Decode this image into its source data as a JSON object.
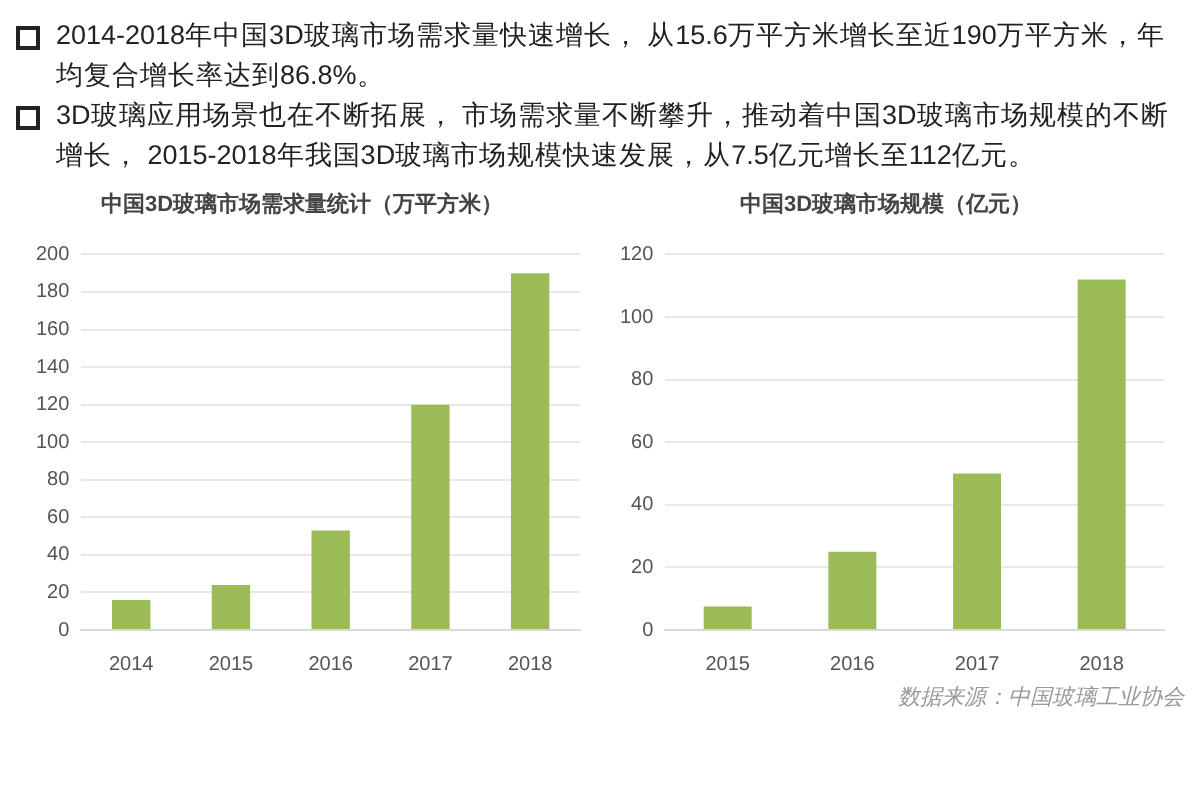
{
  "chart_data": [
    {
      "type": "other",
      "annotations": [
        "2014-2018年中国3D玻璃市场需求量快速增长， 从15.6万平方米增长至近190万平方米，年均复合增长率达到86.8%。",
        "3D玻璃应用场景也在不断拓展， 市场需求量不断攀升，推动着中国3D玻璃市场规模的不断增长， 2015-2018年我国3D玻璃市场规模快速发展，从7.5亿元增长至112亿元。"
      ]
    },
    {
      "type": "bar",
      "title": "中国3D玻璃市场需求量统计（万平方米）",
      "categories": [
        "2014",
        "2015",
        "2016",
        "2017",
        "2018"
      ],
      "values": [
        16,
        24,
        53,
        120,
        190
      ],
      "color": "#9bbb59",
      "ylim": [
        0,
        200
      ],
      "yticks": [
        0,
        20,
        40,
        60,
        80,
        100,
        120,
        140,
        160,
        180,
        200
      ],
      "grid": "y"
    },
    {
      "type": "bar",
      "title": "中国3D玻璃市场规模（亿元）",
      "categories": [
        "2015",
        "2016",
        "2017",
        "2018"
      ],
      "values": [
        7.5,
        25,
        50,
        112
      ],
      "color": "#9bbb59",
      "ylim": [
        0,
        120
      ],
      "yticks": [
        0,
        20,
        40,
        60,
        80,
        100,
        120
      ],
      "grid": "y",
      "annotations": [
        "数据来源：中国玻璃工业协会"
      ]
    }
  ]
}
